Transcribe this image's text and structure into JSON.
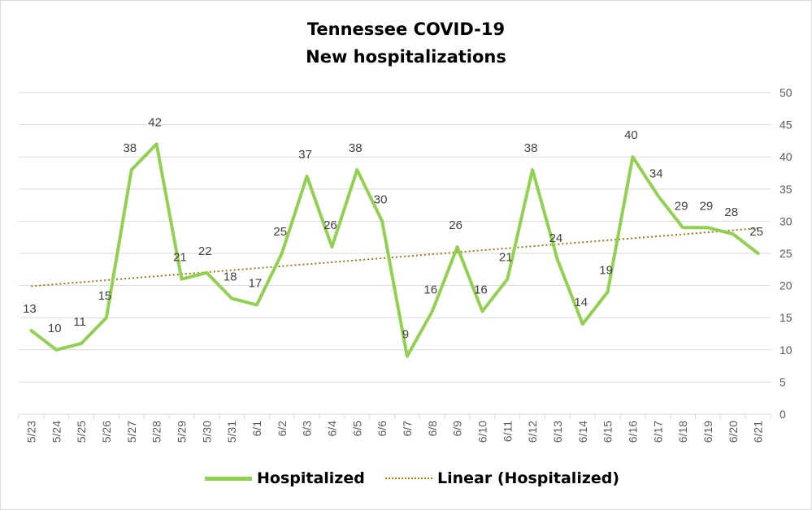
{
  "chart_data": {
    "type": "line",
    "title": "Tennessee COVID-19",
    "subtitle": "New hospitalizations",
    "categories": [
      "5/23",
      "5/24",
      "5/25",
      "5/26",
      "5/27",
      "5/28",
      "5/29",
      "5/30",
      "5/31",
      "6/1",
      "6/2",
      "6/3",
      "6/4",
      "6/5",
      "6/6",
      "6/7",
      "6/8",
      "6/9",
      "6/10",
      "6/11",
      "6/12",
      "6/13",
      "6/14",
      "6/15",
      "6/16",
      "6/17",
      "6/18",
      "6/19",
      "6/20",
      "6/21"
    ],
    "series": [
      {
        "name": "Hospitalized",
        "color": "#92d050",
        "values": [
          13,
          10,
          11,
          15,
          38,
          42,
          21,
          22,
          18,
          17,
          25,
          37,
          26,
          38,
          30,
          9,
          16,
          26,
          16,
          21,
          38,
          24,
          14,
          19,
          40,
          34,
          29,
          29,
          28,
          25
        ]
      }
    ],
    "trendline": {
      "name": "Linear (Hospitalized)",
      "color": "#9b7a14",
      "start": 19.9,
      "end": 28.9
    },
    "ylim": [
      0,
      50
    ],
    "yticks": [
      0,
      5,
      10,
      15,
      20,
      25,
      30,
      35,
      40,
      45,
      50
    ],
    "y_axis_side": "right",
    "grid": true,
    "legend_position": "bottom"
  }
}
